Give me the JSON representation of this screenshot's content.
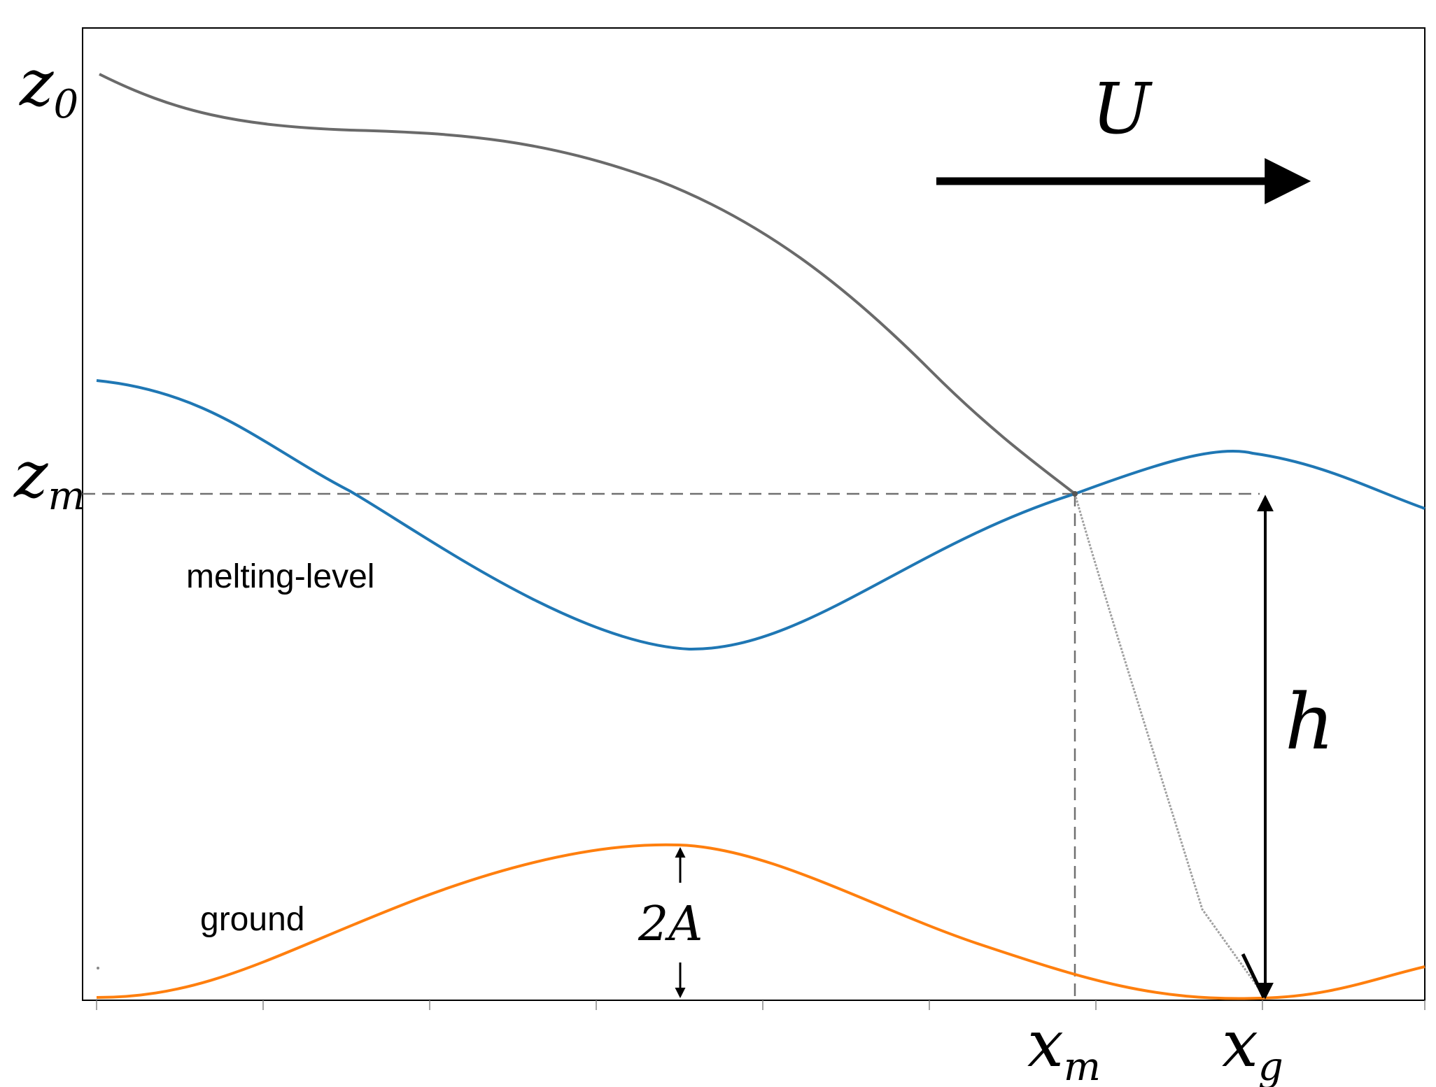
{
  "labels": {
    "z0": {
      "base": "z",
      "sub": "0"
    },
    "zm": {
      "base": "z",
      "sub": "m"
    },
    "xm": {
      "base": "x",
      "sub": "m"
    },
    "xg": {
      "base": "x",
      "sub": "g"
    },
    "U": "U",
    "h": "h",
    "amplitude": "2A",
    "melting_level": "melting-level",
    "ground": "ground"
  },
  "colors": {
    "melting_level": "#1f77b4",
    "ground": "#ff7f0e",
    "trajectory": "#707070",
    "guide": "#707070",
    "axes": "#000000",
    "arrow": "#000000"
  }
}
